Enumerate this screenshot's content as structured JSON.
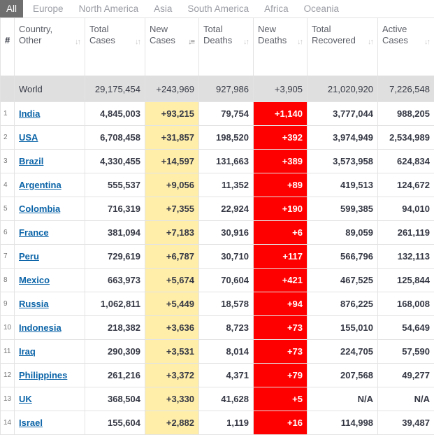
{
  "tabs": [
    "All",
    "Europe",
    "North America",
    "Asia",
    "South America",
    "Africa",
    "Oceania"
  ],
  "headers": [
    {
      "line1": "#",
      "line2": ""
    },
    {
      "line1": "Country,",
      "line2": "Other"
    },
    {
      "line1": "Total",
      "line2": "Cases"
    },
    {
      "line1": "New",
      "line2": "Cases"
    },
    {
      "line1": "Total",
      "line2": "Deaths"
    },
    {
      "line1": "New",
      "line2": "Deaths"
    },
    {
      "line1": "Total",
      "line2": "Recovered"
    },
    {
      "line1": "Active",
      "line2": "Cases"
    }
  ],
  "sort_icons": {
    "default": "↓↑",
    "active": "↓≡"
  },
  "world": {
    "name": "World",
    "total_cases": "29,175,454",
    "new_cases": "+243,969",
    "total_deaths": "927,986",
    "new_deaths": "+3,905",
    "total_recovered": "21,020,920",
    "active_cases": "7,226,548"
  },
  "rows": [
    {
      "idx": "1",
      "country": "India",
      "total_cases": "4,845,003",
      "new_cases": "+93,215",
      "total_deaths": "79,754",
      "new_deaths": "+1,140",
      "total_recovered": "3,777,044",
      "active_cases": "988,205"
    },
    {
      "idx": "2",
      "country": "USA",
      "total_cases": "6,708,458",
      "new_cases": "+31,857",
      "total_deaths": "198,520",
      "new_deaths": "+392",
      "total_recovered": "3,974,949",
      "active_cases": "2,534,989"
    },
    {
      "idx": "3",
      "country": "Brazil",
      "total_cases": "4,330,455",
      "new_cases": "+14,597",
      "total_deaths": "131,663",
      "new_deaths": "+389",
      "total_recovered": "3,573,958",
      "active_cases": "624,834"
    },
    {
      "idx": "4",
      "country": "Argentina",
      "total_cases": "555,537",
      "new_cases": "+9,056",
      "total_deaths": "11,352",
      "new_deaths": "+89",
      "total_recovered": "419,513",
      "active_cases": "124,672"
    },
    {
      "idx": "5",
      "country": "Colombia",
      "total_cases": "716,319",
      "new_cases": "+7,355",
      "total_deaths": "22,924",
      "new_deaths": "+190",
      "total_recovered": "599,385",
      "active_cases": "94,010"
    },
    {
      "idx": "6",
      "country": "France",
      "total_cases": "381,094",
      "new_cases": "+7,183",
      "total_deaths": "30,916",
      "new_deaths": "+6",
      "total_recovered": "89,059",
      "active_cases": "261,119"
    },
    {
      "idx": "7",
      "country": "Peru",
      "total_cases": "729,619",
      "new_cases": "+6,787",
      "total_deaths": "30,710",
      "new_deaths": "+117",
      "total_recovered": "566,796",
      "active_cases": "132,113"
    },
    {
      "idx": "8",
      "country": "Mexico",
      "total_cases": "663,973",
      "new_cases": "+5,674",
      "total_deaths": "70,604",
      "new_deaths": "+421",
      "total_recovered": "467,525",
      "active_cases": "125,844"
    },
    {
      "idx": "9",
      "country": "Russia",
      "total_cases": "1,062,811",
      "new_cases": "+5,449",
      "total_deaths": "18,578",
      "new_deaths": "+94",
      "total_recovered": "876,225",
      "active_cases": "168,008"
    },
    {
      "idx": "10",
      "country": "Indonesia",
      "total_cases": "218,382",
      "new_cases": "+3,636",
      "total_deaths": "8,723",
      "new_deaths": "+73",
      "total_recovered": "155,010",
      "active_cases": "54,649"
    },
    {
      "idx": "11",
      "country": "Iraq",
      "total_cases": "290,309",
      "new_cases": "+3,531",
      "total_deaths": "8,014",
      "new_deaths": "+73",
      "total_recovered": "224,705",
      "active_cases": "57,590"
    },
    {
      "idx": "12",
      "country": "Philippines",
      "total_cases": "261,216",
      "new_cases": "+3,372",
      "total_deaths": "4,371",
      "new_deaths": "+79",
      "total_recovered": "207,568",
      "active_cases": "49,277"
    },
    {
      "idx": "13",
      "country": "UK",
      "total_cases": "368,504",
      "new_cases": "+3,330",
      "total_deaths": "41,628",
      "new_deaths": "+5",
      "total_recovered": "N/A",
      "active_cases": "N/A"
    },
    {
      "idx": "14",
      "country": "Israel",
      "total_cases": "155,604",
      "new_cases": "+2,882",
      "total_deaths": "1,119",
      "new_deaths": "+16",
      "total_recovered": "114,998",
      "active_cases": "39,487"
    }
  ],
  "colors": {
    "new_cases_bg": "#ffeeaa",
    "new_deaths_bg": "#ff0000",
    "active_tab_bg": "#6f6f6f",
    "link": "#0b64a8"
  }
}
